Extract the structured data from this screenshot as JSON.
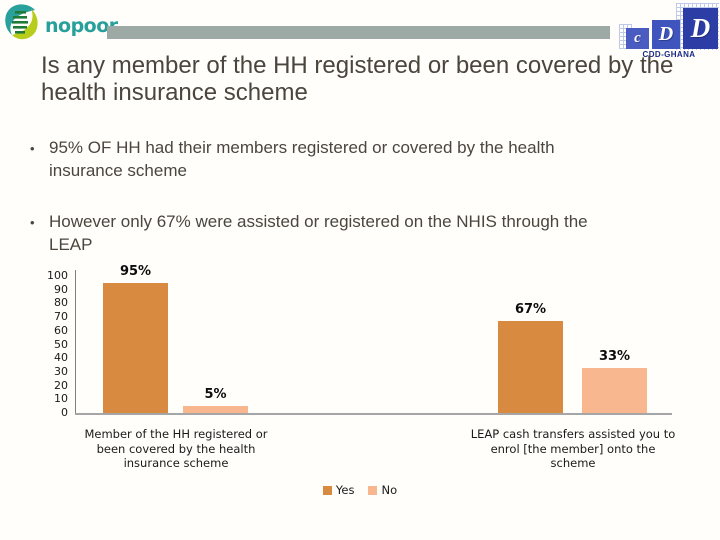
{
  "header": {
    "brand": "nopoor",
    "cdd": {
      "letters": [
        "c",
        "D",
        "D"
      ],
      "caption": "CDD-GHANA"
    }
  },
  "title": "Is any member of the HH registered or been covered by the health insurance scheme",
  "bullets": [
    "95% OF HH had their members registered or covered by the health insurance scheme",
    "However only 67% were assisted or registered on the NHIS through the LEAP"
  ],
  "chart_data": {
    "type": "bar",
    "title": "",
    "xlabel": "",
    "ylabel": "",
    "categories": [
      "Member of the HH registered or\nbeen covered by the health\ninsurance scheme",
      "LEAP cash transfers assisted you to\nenrol [the member] onto the\nscheme"
    ],
    "series": [
      {
        "name": "Yes",
        "color": "#d88b40",
        "values": [
          95,
          67
        ]
      },
      {
        "name": "No",
        "color": "#f8b78e",
        "values": [
          5,
          33
        ]
      }
    ],
    "data_labels": [
      [
        "95%",
        "5%"
      ],
      [
        "67%",
        "33%"
      ]
    ],
    "ylim": [
      0,
      100
    ],
    "ytick_step": 10,
    "grid": false,
    "legend_position": "bottom"
  },
  "colors": {
    "brand_teal": "#27a09b",
    "header_bar_gray": "#9da9a5",
    "cdd_blue": "#2c3ea6",
    "body_text": "#4b453d"
  }
}
